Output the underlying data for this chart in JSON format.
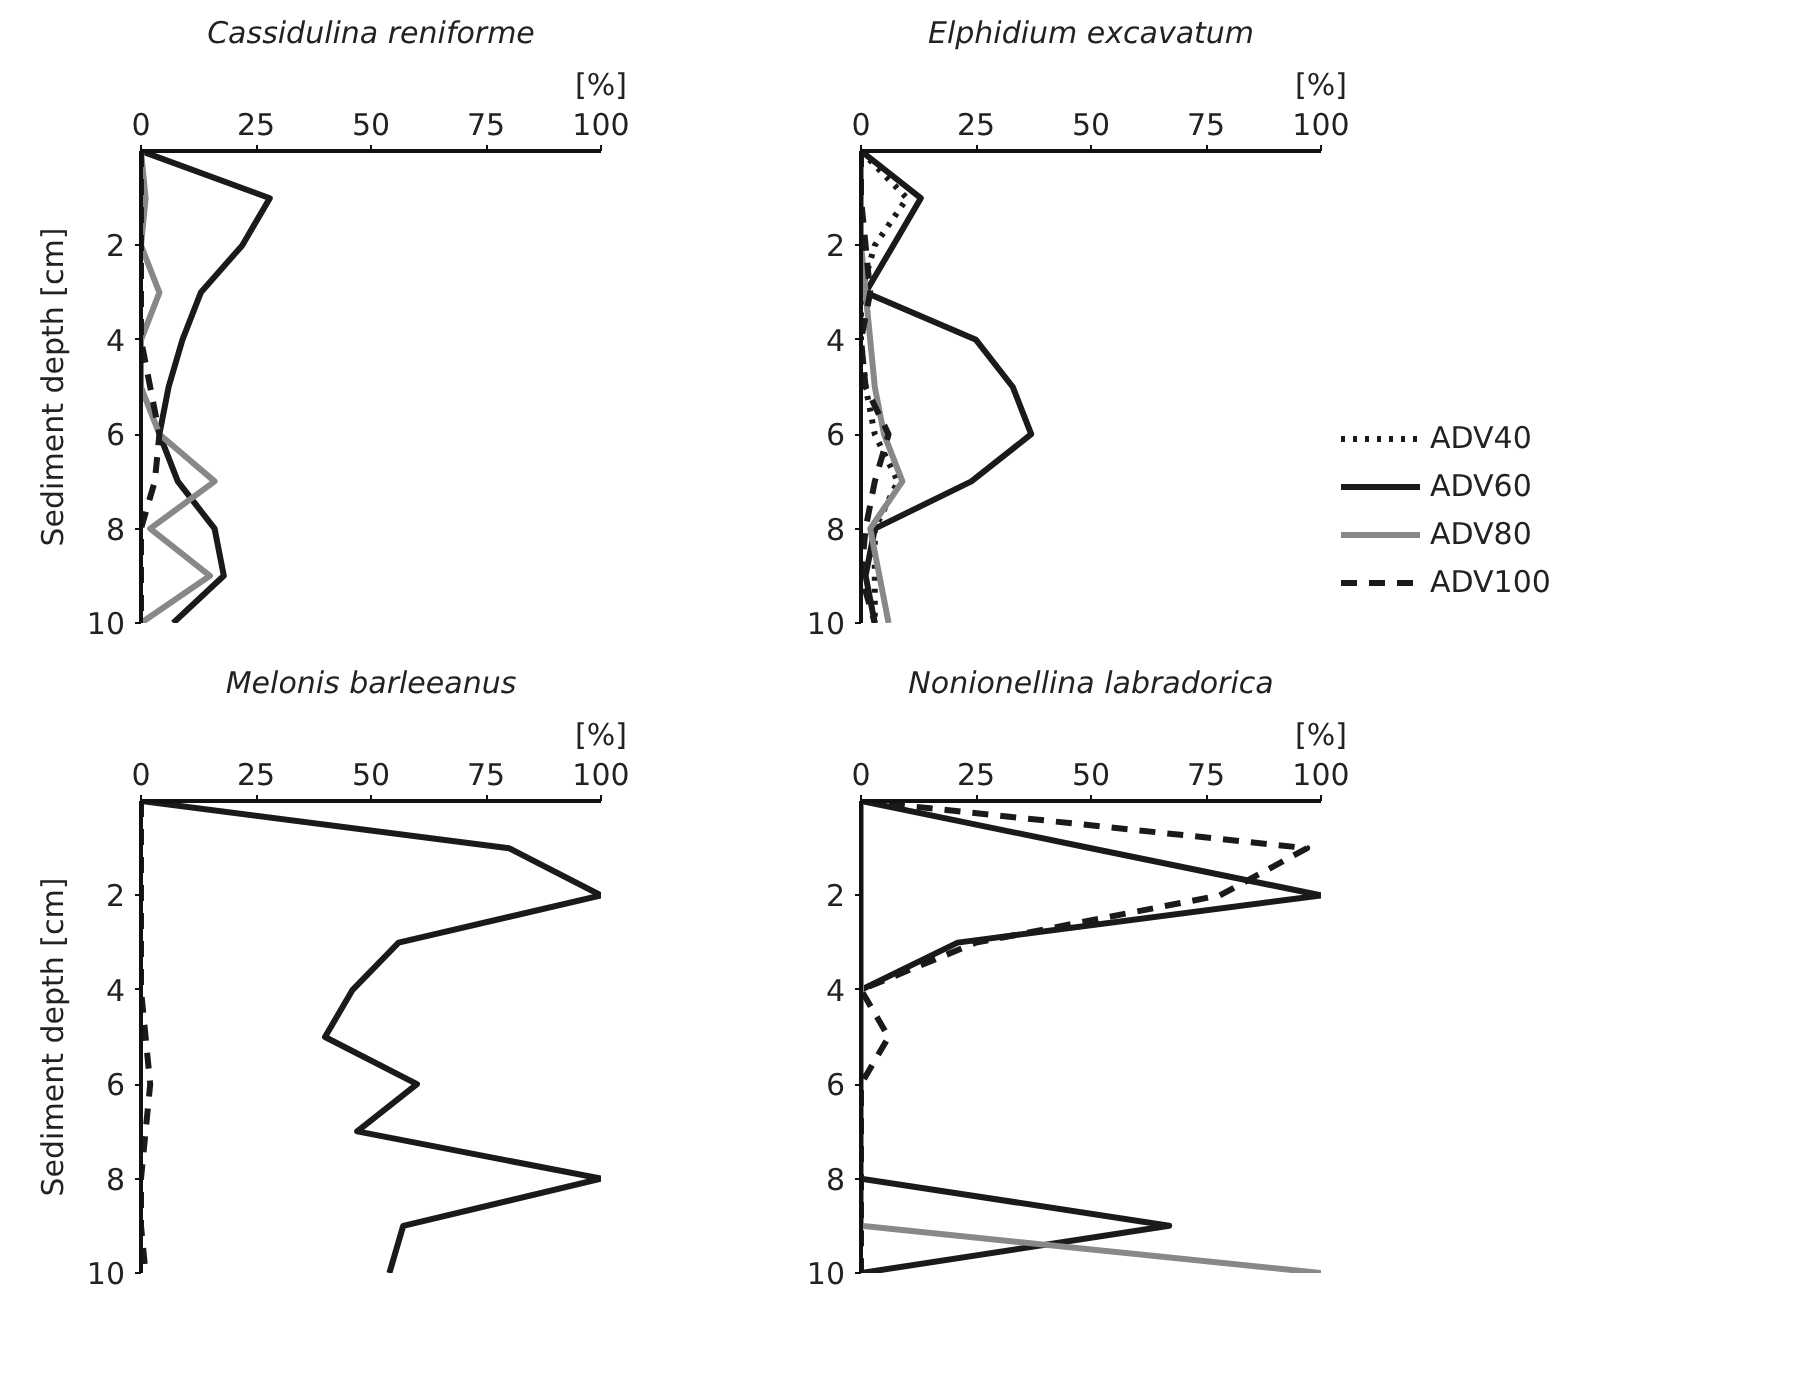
{
  "chart_data": [
    {
      "type": "line",
      "title": "Cassidulina reniforme",
      "xlabel": "[%]",
      "ylabel": "Sediment depth [cm]",
      "xlim": [
        0,
        100
      ],
      "xticks": [
        0,
        25,
        50,
        75,
        100
      ],
      "ylim": [
        10,
        0
      ],
      "yticks": [
        2,
        4,
        6,
        8,
        10
      ],
      "grid": false,
      "legend": false,
      "marker": "none",
      "series": [
        {
          "color": "#1a1a1a",
          "line_style": "solid",
          "x": [
            0,
            28,
            22,
            13,
            9,
            6,
            4,
            8,
            16,
            18,
            7
          ],
          "values": [
            0,
            1,
            2,
            3,
            4,
            5,
            6,
            7,
            8,
            9,
            10
          ]
        },
        {
          "color": "#888888",
          "line_style": "solid",
          "x": [
            0,
            1,
            0,
            4,
            0,
            0,
            4,
            16,
            2,
            15,
            0
          ],
          "values": [
            0,
            1,
            2,
            3,
            4,
            5,
            6,
            7,
            8,
            9,
            10
          ]
        },
        {
          "color": "#1a1a1a",
          "line_style": "dashed",
          "x": [
            0,
            0,
            0,
            0,
            0,
            2,
            4,
            3,
            0,
            0,
            0
          ],
          "values": [
            0,
            1,
            2,
            3,
            4,
            5,
            6,
            7,
            8,
            9,
            10
          ]
        }
      ]
    },
    {
      "type": "line",
      "title": "Elphidium excavatum",
      "xlabel": "[%]",
      "xlim": [
        0,
        100
      ],
      "xticks": [
        0,
        25,
        50,
        75,
        100
      ],
      "ylim": [
        10,
        0
      ],
      "yticks": [
        2,
        4,
        6,
        8,
        10
      ],
      "grid": false,
      "legend": "right",
      "marker": "none",
      "series": [
        {
          "name": "ADV40",
          "color": "#1a1a1a",
          "line_style": "dotted",
          "x": [
            0,
            10,
            3,
            0,
            0,
            1,
            3,
            8,
            3,
            3,
            3
          ],
          "values": [
            0,
            1,
            2,
            3,
            4,
            5,
            6,
            7,
            8,
            9,
            10
          ]
        },
        {
          "name": "ADV60",
          "color": "#1a1a1a",
          "line_style": "solid",
          "x": [
            0,
            13,
            7,
            1,
            25,
            33,
            37,
            24,
            3,
            1,
            3
          ],
          "values": [
            0,
            1,
            2,
            3,
            4,
            5,
            6,
            7,
            8,
            9,
            10
          ]
        },
        {
          "name": "ADV80",
          "color": "#888888",
          "line_style": "solid",
          "x": [
            0,
            0,
            0,
            1,
            2,
            3,
            5,
            9,
            2,
            4,
            6
          ],
          "values": [
            0,
            1,
            2,
            3,
            4,
            5,
            6,
            7,
            8,
            9,
            10
          ]
        },
        {
          "name": "ADV100",
          "color": "#1a1a1a",
          "line_style": "dashed",
          "x": [
            0,
            0,
            1,
            2,
            0,
            1,
            6,
            3,
            1,
            0,
            3
          ],
          "values": [
            0,
            1,
            2,
            3,
            4,
            5,
            6,
            7,
            8,
            9,
            10
          ]
        }
      ]
    },
    {
      "type": "line",
      "title": "Melonis barleeanus",
      "xlabel": "[%]",
      "ylabel": "Sediment depth [cm]",
      "xlim": [
        0,
        100
      ],
      "xticks": [
        0,
        25,
        50,
        75,
        100
      ],
      "ylim": [
        10,
        0
      ],
      "yticks": [
        2,
        4,
        6,
        8,
        10
      ],
      "grid": false,
      "legend": false,
      "marker": "none",
      "series": [
        {
          "color": "#1a1a1a",
          "line_style": "solid",
          "x": [
            0,
            80,
            100,
            56,
            46,
            40,
            60,
            47,
            100,
            57,
            54
          ],
          "values": [
            0,
            1,
            2,
            3,
            4,
            5,
            6,
            7,
            8,
            9,
            10
          ]
        },
        {
          "color": "#1a1a1a",
          "line_style": "dashed",
          "x": [
            0,
            0,
            0,
            0,
            0,
            1,
            2,
            1,
            0,
            0,
            1
          ],
          "values": [
            0,
            1,
            2,
            3,
            4,
            5,
            6,
            7,
            8,
            9,
            10
          ]
        }
      ]
    },
    {
      "type": "line",
      "title": "Nonionellina labradorica",
      "xlabel": "[%]",
      "xlim": [
        0,
        100
      ],
      "xticks": [
        0,
        25,
        50,
        75,
        100
      ],
      "ylim": [
        10,
        0
      ],
      "yticks": [
        2,
        4,
        6,
        8,
        10
      ],
      "grid": false,
      "legend": false,
      "marker": "none",
      "series": [
        {
          "color": "#1a1a1a",
          "line_style": "solid",
          "x": [
            0,
            50,
            100,
            21,
            0,
            0,
            0,
            0,
            0,
            67,
            0
          ],
          "values": [
            0,
            1,
            2,
            3,
            4,
            5,
            6,
            7,
            8,
            9,
            10
          ]
        },
        {
          "color": "#888888",
          "line_style": "solid",
          "x": [
            0,
            0,
            0,
            0,
            0,
            0,
            0,
            0,
            0,
            0,
            100
          ],
          "values": [
            0,
            1,
            2,
            3,
            4,
            5,
            6,
            7,
            8,
            9,
            10
          ]
        },
        {
          "color": "#1a1a1a",
          "line_style": "dashed",
          "x": [
            0,
            97,
            78,
            25,
            0,
            6,
            0,
            0,
            0,
            0,
            0
          ],
          "values": [
            0,
            1,
            2,
            3,
            4,
            5,
            6,
            7,
            8,
            9,
            10
          ]
        }
      ]
    }
  ]
}
